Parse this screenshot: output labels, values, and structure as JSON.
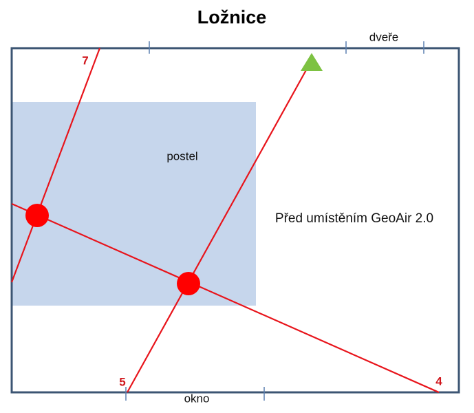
{
  "title": "Ložnice",
  "room": {
    "door_label": "dveře",
    "window_label": "okno"
  },
  "bed": {
    "label": "postel"
  },
  "annotation": "Před umístěním GeoAir 2.0",
  "lines": [
    {
      "label": "7"
    },
    {
      "label": "5"
    },
    {
      "label": "4"
    }
  ]
}
